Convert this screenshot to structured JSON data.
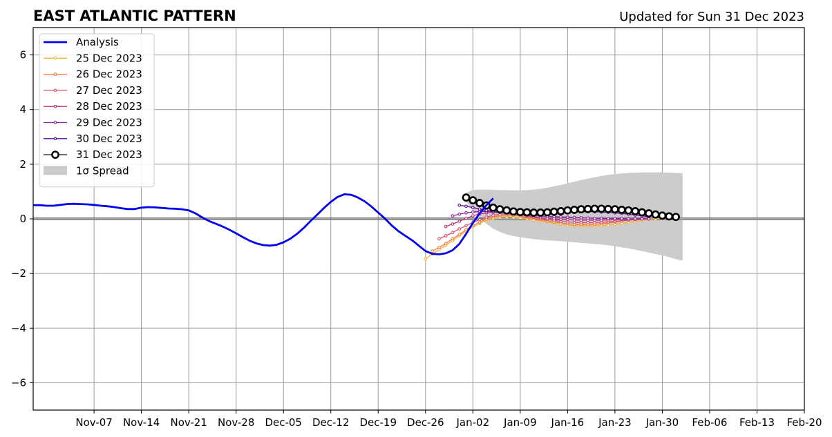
{
  "header": {
    "title": "EAST ATLANTIC PATTERN",
    "updated": "Updated for Sun 31 Dec 2023"
  },
  "colors": {
    "analysis": "#0000ee",
    "spread": "#cccccc",
    "grid": "#999999",
    "forecast_31": "#000000"
  },
  "chart_data": {
    "type": "line",
    "title": "EAST ATLANTIC PATTERN",
    "subtitle": "Updated for Sun 31 Dec 2023",
    "x_axis": {
      "type": "date",
      "range": [
        "2023-10-29",
        "2024-02-20"
      ],
      "tick_dates": [
        "2023-11-07",
        "2023-11-14",
        "2023-11-21",
        "2023-11-28",
        "2023-12-05",
        "2023-12-12",
        "2023-12-19",
        "2023-12-26",
        "2024-01-02",
        "2024-01-09",
        "2024-01-16",
        "2024-01-23",
        "2024-01-30",
        "2024-02-06",
        "2024-02-13",
        "2024-02-20"
      ],
      "tick_labels": [
        "Nov-07",
        "Nov-14",
        "Nov-21",
        "Nov-28",
        "Dec-05",
        "Dec-12",
        "Dec-19",
        "Dec-26",
        "Jan-02",
        "Jan-09",
        "Jan-16",
        "Jan-23",
        "Jan-30",
        "Feb-06",
        "Feb-13",
        "Feb-20"
      ]
    },
    "y_axis": {
      "range": [
        -7,
        7
      ],
      "ticks": [
        -6,
        -4,
        -2,
        0,
        2,
        4,
        6
      ],
      "tick_labels": [
        "−6",
        "−4",
        "−2",
        "0",
        "2",
        "4",
        "6"
      ]
    },
    "grid": true,
    "legend_position": "top-left",
    "analysis": {
      "name": "Analysis",
      "color": "#0000ee",
      "points": [
        [
          "2023-10-29",
          0.5
        ],
        [
          "2023-10-30",
          0.5
        ],
        [
          "2023-10-31",
          0.48
        ],
        [
          "2023-11-01",
          0.48
        ],
        [
          "2023-11-02",
          0.51
        ],
        [
          "2023-11-03",
          0.54
        ],
        [
          "2023-11-04",
          0.55
        ],
        [
          "2023-11-05",
          0.54
        ],
        [
          "2023-11-06",
          0.53
        ],
        [
          "2023-11-07",
          0.51
        ],
        [
          "2023-11-08",
          0.48
        ],
        [
          "2023-11-09",
          0.46
        ],
        [
          "2023-11-10",
          0.43
        ],
        [
          "2023-11-11",
          0.39
        ],
        [
          "2023-11-12",
          0.36
        ],
        [
          "2023-11-13",
          0.36
        ],
        [
          "2023-11-14",
          0.41
        ],
        [
          "2023-11-15",
          0.43
        ],
        [
          "2023-11-16",
          0.42
        ],
        [
          "2023-11-17",
          0.4
        ],
        [
          "2023-11-18",
          0.38
        ],
        [
          "2023-11-19",
          0.37
        ],
        [
          "2023-11-20",
          0.35
        ],
        [
          "2023-11-21",
          0.31
        ],
        [
          "2023-11-22",
          0.2
        ],
        [
          "2023-11-23",
          0.05
        ],
        [
          "2023-11-24",
          -0.08
        ],
        [
          "2023-11-25",
          -0.18
        ],
        [
          "2023-11-26",
          -0.28
        ],
        [
          "2023-11-27",
          -0.4
        ],
        [
          "2023-11-28",
          -0.53
        ],
        [
          "2023-11-29",
          -0.67
        ],
        [
          "2023-11-30",
          -0.8
        ],
        [
          "2023-12-01",
          -0.9
        ],
        [
          "2023-12-02",
          -0.96
        ],
        [
          "2023-12-03",
          -0.98
        ],
        [
          "2023-12-04",
          -0.95
        ],
        [
          "2023-12-05",
          -0.86
        ],
        [
          "2023-12-06",
          -0.73
        ],
        [
          "2023-12-07",
          -0.55
        ],
        [
          "2023-12-08",
          -0.33
        ],
        [
          "2023-12-09",
          -0.08
        ],
        [
          "2023-12-10",
          0.16
        ],
        [
          "2023-12-11",
          0.4
        ],
        [
          "2023-12-12",
          0.62
        ],
        [
          "2023-12-13",
          0.8
        ],
        [
          "2023-12-14",
          0.9
        ],
        [
          "2023-12-15",
          0.88
        ],
        [
          "2023-12-16",
          0.78
        ],
        [
          "2023-12-17",
          0.64
        ],
        [
          "2023-12-18",
          0.45
        ],
        [
          "2023-12-19",
          0.23
        ],
        [
          "2023-12-20",
          0.01
        ],
        [
          "2023-12-21",
          -0.24
        ],
        [
          "2023-12-22",
          -0.45
        ],
        [
          "2023-12-23",
          -0.62
        ],
        [
          "2023-12-24",
          -0.78
        ],
        [
          "2023-12-25",
          -0.98
        ],
        [
          "2023-12-26",
          -1.18
        ],
        [
          "2023-12-27",
          -1.28
        ],
        [
          "2023-12-28",
          -1.3
        ],
        [
          "2023-12-29",
          -1.26
        ],
        [
          "2023-12-30",
          -1.15
        ],
        [
          "2023-12-31",
          -0.92
        ],
        [
          "2024-01-01",
          -0.55
        ],
        [
          "2024-01-02",
          -0.15
        ],
        [
          "2024-01-03",
          0.2
        ],
        [
          "2024-01-04",
          0.5
        ],
        [
          "2024-01-05",
          0.75
        ]
      ]
    },
    "forecasts": [
      {
        "name": "25 Dec 2023",
        "color": "#f9b234",
        "start": "2023-12-26",
        "values": [
          -1.47,
          -1.28,
          -1.13,
          -0.96,
          -0.8,
          -0.62,
          -0.45,
          -0.3,
          -0.17,
          -0.06,
          0.01,
          0.06,
          0.07,
          0.06,
          0.03,
          0.0,
          -0.04,
          -0.08,
          -0.12,
          -0.16,
          -0.2,
          -0.23,
          -0.25,
          -0.26,
          -0.26,
          -0.26,
          -0.25,
          -0.23,
          -0.2,
          -0.17,
          -0.13,
          -0.09,
          -0.05,
          -0.02,
          0.0,
          0.02
        ]
      },
      {
        "name": "26 Dec 2023",
        "color": "#f07d3a",
        "start": "2023-12-27",
        "values": [
          -1.18,
          -1.05,
          -0.9,
          -0.73,
          -0.57,
          -0.4,
          -0.25,
          -0.12,
          -0.01,
          0.07,
          0.12,
          0.14,
          0.13,
          0.1,
          0.06,
          0.02,
          -0.03,
          -0.08,
          -0.12,
          -0.15,
          -0.18,
          -0.2,
          -0.21,
          -0.21,
          -0.2,
          -0.18,
          -0.15,
          -0.12,
          -0.08,
          -0.04,
          -0.01,
          0.01,
          0.02
        ]
      },
      {
        "name": "27 Dec 2023",
        "color": "#dd4f68",
        "start": "2023-12-28",
        "values": [
          -0.73,
          -0.62,
          -0.5,
          -0.37,
          -0.25,
          -0.13,
          -0.03,
          0.06,
          0.13,
          0.17,
          0.18,
          0.17,
          0.14,
          0.1,
          0.06,
          0.02,
          -0.02,
          -0.06,
          -0.09,
          -0.11,
          -0.13,
          -0.14,
          -0.14,
          -0.14,
          -0.13,
          -0.11,
          -0.09,
          -0.07,
          -0.05,
          -0.03,
          -0.01,
          0.0
        ]
      },
      {
        "name": "28 Dec 2023",
        "color": "#b9327c",
        "start": "2023-12-29",
        "values": [
          -0.28,
          -0.19,
          -0.09,
          0.02,
          0.11,
          0.18,
          0.22,
          0.24,
          0.24,
          0.22,
          0.19,
          0.15,
          0.11,
          0.07,
          0.04,
          0.02,
          0.0,
          -0.02,
          -0.03,
          -0.04,
          -0.05,
          -0.05,
          -0.05,
          -0.05,
          -0.04,
          -0.03,
          -0.02,
          -0.01,
          0.0,
          0.01,
          0.02
        ]
      },
      {
        "name": "29 Dec 2023",
        "color": "#8d1da2",
        "start": "2023-12-30",
        "values": [
          0.11,
          0.17,
          0.22,
          0.25,
          0.27,
          0.27,
          0.26,
          0.24,
          0.22,
          0.19,
          0.16,
          0.14,
          0.12,
          0.1,
          0.09,
          0.08,
          0.07,
          0.06,
          0.05,
          0.04,
          0.03,
          0.02,
          0.02,
          0.01,
          0.01,
          0.01,
          0.0,
          0.0,
          0.0,
          0.0
        ]
      },
      {
        "name": "30 Dec 2023",
        "color": "#5a0c96",
        "start": "2023-12-31",
        "values": [
          0.5,
          0.46,
          0.41,
          0.36,
          0.31,
          0.27,
          0.24,
          0.22,
          0.21,
          0.21,
          0.21,
          0.21,
          0.22,
          0.23,
          0.24,
          0.25,
          0.25,
          0.26,
          0.26,
          0.26,
          0.26,
          0.25,
          0.24,
          0.22,
          0.2,
          0.17,
          0.14,
          0.11,
          0.08
        ]
      },
      {
        "name": "31 Dec 2023",
        "color": "#000000",
        "start": "2024-01-01",
        "values": [
          0.78,
          0.68,
          0.58,
          0.49,
          0.41,
          0.35,
          0.31,
          0.27,
          0.25,
          0.24,
          0.23,
          0.23,
          0.24,
          0.26,
          0.28,
          0.31,
          0.33,
          0.35,
          0.36,
          0.37,
          0.37,
          0.36,
          0.35,
          0.33,
          0.31,
          0.28,
          0.24,
          0.2,
          0.16,
          0.12,
          0.09,
          0.07
        ]
      }
    ],
    "spread": {
      "name": "1σ Spread",
      "color": "#cccccc",
      "start": "2024-01-01",
      "upper": [
        0.95,
        1.06,
        1.07,
        1.07,
        1.06,
        1.05,
        1.05,
        1.04,
        1.04,
        1.05,
        1.07,
        1.1,
        1.14,
        1.19,
        1.24,
        1.3,
        1.36,
        1.42,
        1.47,
        1.52,
        1.57,
        1.61,
        1.64,
        1.66,
        1.68,
        1.69,
        1.7,
        1.7,
        1.7,
        1.7,
        1.69,
        1.68,
        1.67
      ],
      "lower": [
        0.62,
        0.3,
        0.04,
        -0.18,
        -0.36,
        -0.48,
        -0.57,
        -0.63,
        -0.67,
        -0.71,
        -0.74,
        -0.77,
        -0.79,
        -0.8,
        -0.82,
        -0.84,
        -0.86,
        -0.88,
        -0.9,
        -0.92,
        -0.94,
        -0.97,
        -1.0,
        -1.04,
        -1.08,
        -1.13,
        -1.18,
        -1.23,
        -1.29,
        -1.34,
        -1.4,
        -1.47,
        -1.53
      ]
    }
  }
}
